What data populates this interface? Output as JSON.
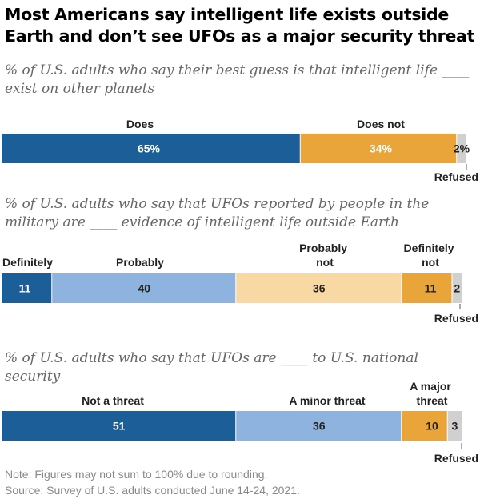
{
  "title": "Most Americans say intelligent life exists outside Earth and don’t see UFOs as a major security threat",
  "note": "Note: Figures may not sum to 100% due to rounding.",
  "source": "Source: Survey of U.S. adults conducted June 14-24, 2021.",
  "colors": {
    "dark_blue": "#1c5f98",
    "light_blue": "#8db3de",
    "peach": "#f8d9a3",
    "orange": "#e9a43a",
    "gray": "#d0d0d0"
  },
  "chart_data": [
    {
      "type": "bar",
      "orientation": "horizontal-stacked",
      "subtitle": "% of U.S. adults who say their best guess is that intelligent life ____ exist on other planets",
      "segments": [
        {
          "label": "Does",
          "value": 65,
          "display": "65%",
          "color": "#1c5f98",
          "text_color": "#ffffff"
        },
        {
          "label": "Does not",
          "value": 34,
          "display": "34%",
          "color": "#e9a43a",
          "text_color": "#ffffff"
        },
        {
          "label": "Refused",
          "value": 2,
          "display": "2%",
          "color": "#d0d0d0",
          "text_color": "#222222"
        }
      ]
    },
    {
      "type": "bar",
      "orientation": "horizontal-stacked",
      "subtitle": "% of U.S. adults who say that UFOs reported by people in the military are ____ evidence of intelligent life outside Earth",
      "segments": [
        {
          "label": "Definitely",
          "value": 11,
          "display": "11",
          "color": "#1c5f98",
          "text_color": "#ffffff"
        },
        {
          "label": "Probably",
          "value": 40,
          "display": "40",
          "color": "#8db3de",
          "text_color": "#222222"
        },
        {
          "label": "Probably not",
          "value": 36,
          "display": "36",
          "color": "#f8d9a3",
          "text_color": "#222222"
        },
        {
          "label": "Definitely not",
          "value": 11,
          "display": "11",
          "color": "#e9a43a",
          "text_color": "#222222"
        },
        {
          "label": "Refused",
          "value": 2,
          "display": "2",
          "color": "#d0d0d0",
          "text_color": "#222222"
        }
      ]
    },
    {
      "type": "bar",
      "orientation": "horizontal-stacked",
      "subtitle": "% of U.S. adults who say that UFOs are ____ to U.S. national security",
      "segments": [
        {
          "label": "Not a threat",
          "value": 51,
          "display": "51",
          "color": "#1c5f98",
          "text_color": "#ffffff"
        },
        {
          "label": "A minor threat",
          "value": 36,
          "display": "36",
          "color": "#8db3de",
          "text_color": "#222222"
        },
        {
          "label": "A major threat",
          "value": 10,
          "display": "10",
          "color": "#e9a43a",
          "text_color": "#222222"
        },
        {
          "label": "Refused",
          "value": 3,
          "display": "3",
          "color": "#d0d0d0",
          "text_color": "#222222"
        }
      ]
    }
  ]
}
